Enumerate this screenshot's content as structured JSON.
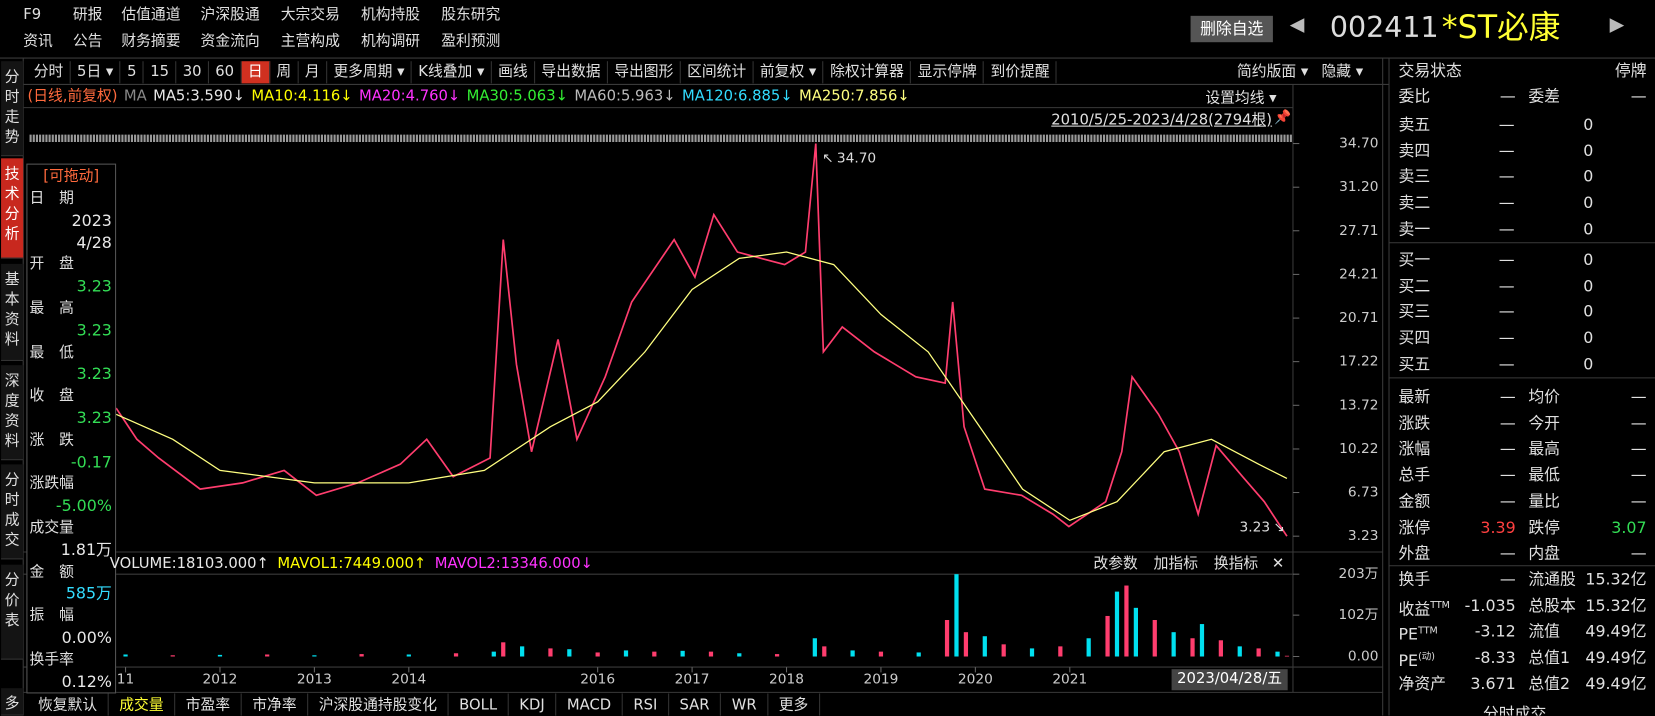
{
  "top_menu": [
    [
      "F9",
      "研报",
      "估值通道",
      "沪深股通",
      "大宗交易",
      "机构持股",
      "股东研究"
    ],
    [
      "资讯",
      "公告",
      "财务摘要",
      "资金流向",
      "主营构成",
      "机构调研",
      "盈利预测"
    ]
  ],
  "header": {
    "button": "删除自选",
    "code": "002411",
    "name": "*ST必康"
  },
  "side_tabs": [
    "分时走势",
    "技术分析",
    "基本资料",
    "深度资料",
    "分时成交",
    "分价表",
    "多"
  ],
  "toolbar": {
    "items": [
      "分时",
      "5日 ▾",
      "5",
      "15",
      "30",
      "60",
      "日",
      "周",
      "月",
      "更多周期 ▾",
      "K线叠加 ▾",
      "画线",
      "导出数据",
      "导出图形",
      "区间统计",
      "前复权 ▾",
      "除权计算器",
      "显示停牌",
      "到价提醒"
    ],
    "active": "日",
    "right": [
      "简约版面 ▾",
      "隐藏 ▾"
    ]
  },
  "ma_legend": [
    {
      "text": "(日线,前复权)",
      "color": "#ff6a3d"
    },
    {
      "text": "MA",
      "color": "#888888"
    },
    {
      "text": "MA5:3.590↓",
      "color": "#e8e8e8"
    },
    {
      "text": "MA10:4.116↓",
      "color": "#ffff00"
    },
    {
      "text": "MA20:4.760↓",
      "color": "#ff33ff"
    },
    {
      "text": "MA30:5.063↓",
      "color": "#33ee33"
    },
    {
      "text": "MA60:5.963↓",
      "color": "#bbbbbb"
    },
    {
      "text": "MA120:6.885↓",
      "color": "#33ddff"
    },
    {
      "text": "MA250:7.856↓",
      "color": "#ffff80"
    }
  ],
  "ma_settings": "设置均线 ▾",
  "date_range": "2010/5/25-2023/4/28(2794根)",
  "info_panel": {
    "title": "[可拖动]",
    "rows": [
      {
        "label": "日　期",
        "values": [
          "2023",
          "4/28"
        ],
        "color": "#e8e8e8"
      },
      {
        "label": "开　盘",
        "values": [
          "3.23"
        ],
        "color": "#33dd55"
      },
      {
        "label": "最　高",
        "values": [
          "3.23"
        ],
        "color": "#33dd55"
      },
      {
        "label": "最　低",
        "values": [
          "3.23"
        ],
        "color": "#33dd55"
      },
      {
        "label": "收　盘",
        "values": [
          "3.23"
        ],
        "color": "#33dd55"
      },
      {
        "label": "涨　跌",
        "values": [
          "-0.17"
        ],
        "color": "#33dd55"
      },
      {
        "label": "涨跌幅",
        "values": [
          "-5.00%"
        ],
        "color": "#33dd55"
      },
      {
        "label": "成交量",
        "values": [
          "1.81万"
        ],
        "color": "#e8e8e8"
      },
      {
        "label": "金　额",
        "values": [
          "585万"
        ],
        "color": "#33ddff"
      },
      {
        "label": "振　幅",
        "values": [
          "0.00%"
        ],
        "color": "#e8e8e8"
      },
      {
        "label": "换手率",
        "values": [
          "0.12%"
        ],
        "color": "#e8e8e8"
      }
    ]
  },
  "price_chart": {
    "xlim": [
      2010.9,
      2023.33
    ],
    "ylim": [
      3.23,
      34.7
    ],
    "yticks": [
      {
        "value": 34.7,
        "label": "34.70"
      },
      {
        "value": 31.2,
        "label": "31.20"
      },
      27.71,
      24.21,
      20.71,
      17.22,
      13.72,
      10.22,
      6.73,
      3.23
    ],
    "xticks": [
      {
        "value": 2011,
        "label": "11"
      },
      2012,
      2013,
      2014,
      2016,
      2017,
      2018,
      2019,
      2020,
      2021
    ],
    "series": [
      {
        "color": "#ff3d6e",
        "x": [
          2010.9,
          2011.12,
          2011.35,
          2011.79,
          2012.24,
          2012.68,
          2013.02,
          2013.46,
          2013.91,
          2014.19,
          2014.47,
          2014.86,
          2015.0,
          2015.14,
          2015.3,
          2015.58,
          2015.78,
          2016.08,
          2016.36,
          2016.81,
          2017.03,
          2017.23,
          2017.48,
          2017.98,
          2018.2,
          2018.31,
          2018.39,
          2018.59,
          2018.93,
          2019.37,
          2019.68,
          2019.76,
          2019.88,
          2020.1,
          2020.49,
          2020.82,
          2020.99,
          2021.38,
          2021.55,
          2021.66,
          2021.94,
          2022.16,
          2022.36,
          2022.55,
          2022.83,
          2023.06,
          2023.3
        ],
        "values": [
          13.5,
          11,
          9.5,
          7,
          7.5,
          8.5,
          6.5,
          7.5,
          9,
          11,
          8,
          9.5,
          27,
          17,
          10,
          19,
          11,
          16,
          22,
          27,
          24,
          29,
          26,
          25,
          26,
          34.7,
          18,
          20,
          18,
          16,
          15.5,
          22,
          12,
          7,
          6.5,
          5,
          4,
          6,
          10,
          16,
          13,
          10,
          5,
          10.5,
          8,
          6,
          3.23
        ]
      },
      {
        "color": "#ffff80",
        "x": [
          2010.9,
          2011.5,
          2012,
          2013,
          2014,
          2014.8,
          2015.5,
          2016,
          2016.5,
          2017,
          2017.5,
          2018,
          2018.5,
          2019,
          2019.5,
          2020,
          2020.5,
          2021,
          2021.5,
          2022,
          2022.5,
          2023,
          2023.3
        ],
        "values": [
          13,
          11,
          8.5,
          7.5,
          7.5,
          8.5,
          12,
          14,
          18,
          23,
          25.5,
          26,
          25,
          21,
          18,
          12.5,
          7,
          4.5,
          6,
          10,
          11,
          9,
          7.856
        ]
      }
    ],
    "annotations": [
      {
        "value": 34.7,
        "label": "34.70",
        "arrow": "↖"
      },
      {
        "value": 3.23,
        "label": "3.23",
        "arrow": "↘"
      }
    ],
    "cursor_date": "2023/04/28/五"
  },
  "volume_chart": {
    "legend": [
      {
        "text": "VOLUME:18103.000↑",
        "color": "#e8e8e8"
      },
      {
        "text": "MAVOL1:7449.000↑",
        "color": "#ffff00"
      },
      {
        "text": "MAVOL2:13346.000↓",
        "color": "#ff33ff"
      }
    ],
    "buttons": [
      "改参数",
      "加指标",
      "换指标",
      "✕"
    ],
    "ylim": [
      0,
      203
    ],
    "yticks": [
      {
        "value": 203,
        "label": "203万"
      },
      {
        "value": 102,
        "label": "102万"
      },
      {
        "value": 0,
        "label": "0.00"
      }
    ],
    "colors": [
      "#00e0f0",
      "#ff3d6e"
    ],
    "x": [
      2011.0,
      2011.5,
      2012,
      2012.5,
      2013,
      2013.5,
      2014,
      2014.5,
      2014.9,
      2015.0,
      2015.2,
      2015.5,
      2015.7,
      2016,
      2016.3,
      2016.6,
      2016.9,
      2017.2,
      2017.5,
      2017.9,
      2018.3,
      2018.4,
      2018.7,
      2019.0,
      2019.4,
      2019.7,
      2019.8,
      2019.9,
      2020.1,
      2020.3,
      2020.6,
      2020.9,
      2021.2,
      2021.4,
      2021.5,
      2021.6,
      2021.7,
      2021.9,
      2022.1,
      2022.3,
      2022.4,
      2022.6,
      2022.8,
      2023.0,
      2023.2,
      2023.3
    ],
    "values": [
      5,
      3,
      4,
      5,
      3,
      6,
      5,
      8,
      12,
      35,
      25,
      20,
      18,
      10,
      15,
      12,
      14,
      12,
      8,
      6,
      45,
      25,
      15,
      12,
      10,
      90,
      203,
      60,
      50,
      30,
      20,
      25,
      45,
      100,
      160,
      175,
      120,
      90,
      60,
      45,
      80,
      40,
      25,
      20,
      12,
      1.81
    ]
  },
  "bottom_tabs": {
    "items": [
      "恢复默认",
      "成交量",
      "市盈率",
      "市净率",
      "沪深股通持股变化",
      "BOLL",
      "KDJ",
      "MACD",
      "RSI",
      "SAR",
      "WR",
      "更多"
    ],
    "active": "成交量"
  },
  "quote_panel": {
    "status": [
      "交易状态",
      "停牌"
    ],
    "ratio": [
      "委比",
      "—",
      "委差",
      "—"
    ],
    "asks": [
      [
        "卖五",
        "—",
        "0"
      ],
      [
        "卖四",
        "—",
        "0"
      ],
      [
        "卖三",
        "—",
        "0"
      ],
      [
        "卖二",
        "—",
        "0"
      ],
      [
        "卖一",
        "—",
        "0"
      ]
    ],
    "bids": [
      [
        "买一",
        "—",
        "0"
      ],
      [
        "买二",
        "—",
        "0"
      ],
      [
        "买三",
        "—",
        "0"
      ],
      [
        "买四",
        "—",
        "0"
      ],
      [
        "买五",
        "—",
        "0"
      ]
    ],
    "stats": [
      {
        "cells": [
          "最新",
          "—",
          "均价",
          "—"
        ]
      },
      {
        "cells": [
          "涨跌",
          "—",
          "今开",
          "—"
        ]
      },
      {
        "cells": [
          "涨幅",
          "—",
          "最高",
          "—"
        ]
      },
      {
        "cells": [
          "总手",
          "—",
          "最低",
          "—"
        ]
      },
      {
        "cells": [
          "金额",
          "—",
          "量比",
          "—"
        ]
      },
      {
        "cells": [
          "涨停",
          "3.39",
          "跌停",
          "3.07"
        ],
        "colors": [
          "#ff4040",
          "#33dd55"
        ]
      },
      {
        "cells": [
          "外盘",
          "—",
          "内盘",
          "—"
        ]
      },
      {
        "cells": [
          "换手",
          "—",
          "流通股",
          "15.32亿"
        ]
      },
      {
        "cells": [
          "收益",
          "-1.035",
          "总股本",
          "15.32亿"
        ],
        "sup": "TTM"
      },
      {
        "cells": [
          "PE",
          "-3.12",
          "流值",
          "49.49亿"
        ],
        "sup": "TTM"
      },
      {
        "cells": [
          "PE",
          "-8.33",
          "总值1",
          "49.49亿"
        ],
        "sup": "(动)"
      },
      {
        "cells": [
          "净资产",
          "3.671",
          "总值2",
          "49.49亿"
        ]
      }
    ],
    "footer": "分时成交"
  }
}
